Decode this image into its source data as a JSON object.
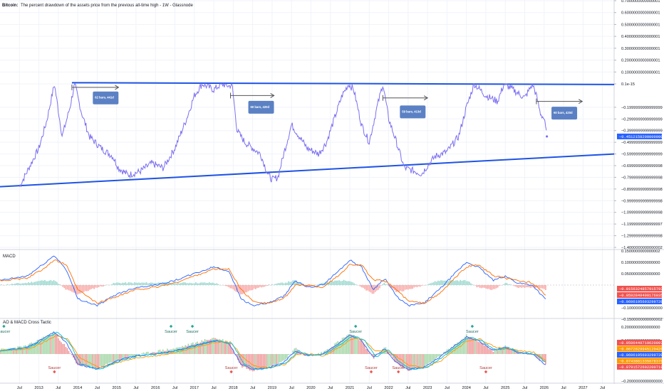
{
  "header": {
    "title_bold": "Bitcoin:",
    "title_rest": "The percent drawdown of the assets price from the previous all-time high - 1W - Glassnode"
  },
  "panes": {
    "macd_label": "MACD",
    "ao_label": "AO & MACD Cross Tactic"
  },
  "colors": {
    "price_line": "#7b6ff0",
    "trend_line": "#1e53e5",
    "note_box": "#5b81c4",
    "macd_line": "#2962ff",
    "signal_line": "#ff6d00",
    "hist_up": "#26a69a",
    "hist_down": "#ef5350",
    "saucer_green": "#26a69a",
    "saucer_red": "#ef5350",
    "tag_blue": "#2962ff",
    "tag_red": "#ef5350",
    "tag_orange": "#ff9800"
  },
  "chart_data": [
    {
      "type": "line",
      "title": "Bitcoin: The percent drawdown of the assets price from the previous all-time high - 1W - Glassnode",
      "series": [
        {
          "x": [
            2012.5,
            2013.0,
            2013.2,
            2013.4,
            2013.6,
            2013.8,
            2013.92,
            2014.1,
            2014.3,
            2014.6,
            2014.9,
            2015.05,
            2015.3,
            2015.6,
            2015.9,
            2016.2,
            2016.5,
            2016.8,
            2017.0,
            2017.2,
            2017.5,
            2017.7,
            2017.9,
            2017.97,
            2018.1,
            2018.3,
            2018.5,
            2018.7,
            2018.9,
            2019.0,
            2019.15,
            2019.3,
            2019.5,
            2019.7,
            2019.9,
            2020.2,
            2020.4,
            2020.6,
            2020.8,
            2020.97,
            2021.1,
            2021.3,
            2021.5,
            2021.7,
            2021.85,
            2022.0,
            2022.2,
            2022.4,
            2022.6,
            2022.85,
            2023.0,
            2023.2,
            2023.5,
            2023.8,
            2024.0,
            2024.2,
            2024.5,
            2024.8,
            2024.97,
            2025.2,
            2025.5,
            2025.7,
            2025.8,
            2025.9,
            2026.0,
            2026.07
          ],
          "values": [
            -0.88,
            -0.55,
            -0.32,
            0.0,
            -0.45,
            -0.2,
            0.0,
            -0.25,
            -0.45,
            -0.55,
            -0.62,
            -0.72,
            -0.78,
            -0.75,
            -0.68,
            -0.72,
            -0.55,
            -0.3,
            -0.1,
            0.0,
            -0.05,
            0.0,
            -0.02,
            0.0,
            -0.4,
            -0.5,
            -0.55,
            -0.6,
            -0.78,
            -0.82,
            -0.8,
            -0.6,
            -0.35,
            -0.45,
            -0.55,
            -0.6,
            -0.5,
            -0.3,
            -0.1,
            0.0,
            -0.05,
            -0.35,
            -0.5,
            -0.2,
            0.0,
            -0.3,
            -0.5,
            -0.72,
            -0.74,
            -0.77,
            -0.7,
            -0.62,
            -0.58,
            -0.45,
            -0.2,
            0.0,
            -0.1,
            -0.15,
            0.0,
            -0.05,
            -0.12,
            0.0,
            -0.1,
            -0.25,
            -0.3,
            -0.45
          ]
        }
      ],
      "xlim": [
        2012.0,
        2027.8
      ],
      "ylim": [
        -1.4,
        0.7
      ],
      "y_tick_labels": [
        "0.7000000000000001",
        "0.6000000000000001",
        "0.5000000000000001",
        "0.4000000000000001",
        "0.3000000000000001",
        "0.2000000000000001",
        "0.1000000000000001",
        "0.1e-15",
        "−0.1999999999999999",
        "−0.2999999999999999",
        "−0.3999999999999999",
        "−0.4999999999999999",
        "−0.5999999999999999",
        "−0.6999999999999998",
        "−0.7999999999999998",
        "−0.8999999999999998",
        "−0.9999999999999998",
        "−1.0999999999999998",
        "−1.1999999999999997",
        "−1.2999999999999998",
        "−1.4000000000000002"
      ],
      "y_tick_values": [
        0.7,
        0.6,
        0.5,
        0.4,
        0.3,
        0.2,
        0.1,
        0.0,
        -0.2,
        -0.3,
        -0.4,
        -0.5,
        -0.6,
        -0.7,
        -0.8,
        -0.9,
        -1.0,
        -1.1,
        -1.2,
        -1.3,
        -1.4
      ],
      "last_value_label": "−0.4512158200000000",
      "trend_lines": [
        {
          "x": [
            2013.85,
            2027.8
          ],
          "y": [
            0.01,
            -0.005
          ]
        },
        {
          "x": [
            2012.0,
            2027.8
          ],
          "y": [
            -0.88,
            -0.6
          ]
        }
      ],
      "projections": [
        {
          "x0": 2013.85,
          "x1": 2015.05,
          "y": -0.03,
          "label": "62 bars, 441d",
          "label_x": 2014.7,
          "label_y": -0.12
        },
        {
          "x0": 2017.93,
          "x1": 2019.05,
          "y": -0.1,
          "label": "60 bars, 420d",
          "label_x": 2018.7,
          "label_y": -0.2
        },
        {
          "x0": 2021.85,
          "x1": 2023.0,
          "y": -0.12,
          "label": "59 bars, 413d",
          "label_x": 2022.6,
          "label_y": -0.24
        },
        {
          "x0": 2025.8,
          "x1": 2026.98,
          "y": -0.15,
          "label": "60 bars, 420d",
          "label_x": 2026.5,
          "label_y": -0.25
        }
      ]
    },
    {
      "type": "line",
      "title": "MACD",
      "series": [
        {
          "name": "MACD",
          "x": [
            2012.0,
            2012.7,
            2013.1,
            2013.4,
            2013.7,
            2014.0,
            2014.5,
            2015.0,
            2015.5,
            2016.0,
            2016.5,
            2017.0,
            2017.5,
            2017.9,
            2018.2,
            2018.5,
            2018.9,
            2019.3,
            2019.6,
            2019.9,
            2020.3,
            2020.7,
            2021.0,
            2021.3,
            2021.6,
            2021.9,
            2022.2,
            2022.5,
            2022.9,
            2023.3,
            2023.7,
            2024.0,
            2024.3,
            2024.7,
            2025.0,
            2025.3,
            2025.7,
            2026.07
          ],
          "values": [
            0.02,
            0.04,
            0.09,
            0.13,
            0.07,
            -0.06,
            -0.09,
            -0.04,
            -0.01,
            0.0,
            0.02,
            0.05,
            0.08,
            0.06,
            -0.06,
            -0.09,
            -0.08,
            -0.05,
            0.02,
            -0.01,
            0.0,
            0.06,
            0.11,
            0.08,
            -0.02,
            0.03,
            -0.05,
            -0.09,
            -0.08,
            -0.02,
            0.05,
            0.1,
            0.08,
            0.02,
            0.04,
            0.01,
            0.0,
            -0.07
          ]
        },
        {
          "name": "Signal",
          "x": [
            2012.0,
            2012.7,
            2013.1,
            2013.4,
            2013.7,
            2014.0,
            2014.5,
            2015.0,
            2015.5,
            2016.0,
            2016.5,
            2017.0,
            2017.5,
            2017.9,
            2018.2,
            2018.5,
            2018.9,
            2019.3,
            2019.6,
            2019.9,
            2020.3,
            2020.7,
            2021.0,
            2021.3,
            2021.6,
            2021.9,
            2022.2,
            2022.5,
            2022.9,
            2023.3,
            2023.7,
            2024.0,
            2024.3,
            2024.7,
            2025.0,
            2025.3,
            2025.7,
            2026.07
          ],
          "values": [
            0.02,
            0.03,
            0.07,
            0.11,
            0.09,
            -0.02,
            -0.08,
            -0.05,
            -0.02,
            -0.01,
            0.01,
            0.04,
            0.07,
            0.07,
            -0.02,
            -0.07,
            -0.08,
            -0.06,
            0.0,
            0.0,
            -0.01,
            0.04,
            0.09,
            0.09,
            0.02,
            0.02,
            -0.02,
            -0.07,
            -0.08,
            -0.04,
            0.03,
            0.08,
            0.09,
            0.04,
            0.03,
            0.02,
            0.01,
            -0.05
          ]
        }
      ],
      "ylim": [
        -0.18,
        0.17
      ],
      "y_tick_labels": [
        "0.1500000000000002",
        "0.1000000000000000",
        "0.0500000000000000",
        "−0.1000000000000000",
        "−0.1500000000000002"
      ],
      "y_tick_values": [
        0.15,
        0.1,
        0.05,
        -0.1,
        -0.15
      ],
      "value_tags": [
        "−0.0156324857915793",
        "−0.0592849490176035",
        "−0.0696195693299720"
      ]
    },
    {
      "type": "bar",
      "title": "AO & MACD Cross Tactic",
      "series": [
        {
          "name": "AO",
          "x": [
            2012.0,
            2012.7,
            2013.1,
            2013.4,
            2013.7,
            2014.0,
            2014.5,
            2015.0,
            2015.5,
            2016.0,
            2016.5,
            2017.0,
            2017.5,
            2017.9,
            2018.2,
            2018.5,
            2018.9,
            2019.3,
            2019.6,
            2019.9,
            2020.3,
            2020.7,
            2021.0,
            2021.3,
            2021.6,
            2021.9,
            2022.2,
            2022.5,
            2022.9,
            2023.3,
            2023.7,
            2024.0,
            2024.3,
            2024.7,
            2025.0,
            2025.3,
            2025.7,
            2026.07
          ],
          "values": [
            0.03,
            0.06,
            0.12,
            0.16,
            0.05,
            -0.08,
            -0.11,
            -0.05,
            -0.01,
            0.02,
            0.04,
            0.08,
            0.12,
            0.09,
            -0.09,
            -0.12,
            -0.1,
            -0.05,
            0.04,
            -0.02,
            0.01,
            0.09,
            0.15,
            0.1,
            -0.03,
            0.05,
            -0.07,
            -0.12,
            -0.1,
            -0.02,
            0.07,
            0.14,
            0.1,
            0.02,
            0.06,
            0.02,
            0.0,
            -0.08
          ]
        }
      ],
      "signals": [
        {
          "label": "Saucer",
          "x": 2012.1,
          "dir": "up"
        },
        {
          "label": "Saucer",
          "x": 2016.4,
          "dir": "up"
        },
        {
          "label": "Saucer",
          "x": 2016.95,
          "dir": "up"
        },
        {
          "label": "Saucer",
          "x": 2021.15,
          "dir": "up"
        },
        {
          "label": "Saucer",
          "x": 2024.15,
          "dir": "up"
        },
        {
          "label": "Saucer",
          "x": 2013.4,
          "dir": "down"
        },
        {
          "label": "Saucer",
          "x": 2017.95,
          "dir": "down"
        },
        {
          "label": "Saucer",
          "x": 2021.55,
          "dir": "down"
        },
        {
          "label": "Saucer",
          "x": 2022.25,
          "dir": "down"
        },
        {
          "label": "Saucer",
          "x": 2024.5,
          "dir": "down"
        }
      ],
      "ylim": [
        -0.2,
        0.22
      ],
      "y_tick_labels": [
        "0.2000000000000000",
        "0.1000000000000000",
        "−0.2000000000000000"
      ],
      "y_tick_values": [
        0.2,
        0.1,
        -0.2
      ],
      "value_tags": [
        "−0.0596449719620097",
        "−0.0672829945120420",
        "−0.0696195693299720",
        "−0.0743881335878376",
        "−0.0791572602200719"
      ]
    }
  ],
  "time_axis": {
    "labels": [
      "Jul",
      "2013",
      "Jul",
      "2014",
      "Jul",
      "2015",
      "Jul",
      "2016",
      "Jul",
      "2017",
      "Jul",
      "2018",
      "Jul",
      "2019",
      "Jul",
      "2020",
      "Jul",
      "2021",
      "Jul",
      "2022",
      "Jul",
      "2023",
      "Jul",
      "2024",
      "Jul",
      "2025",
      "Jul",
      "2026",
      "Jul",
      "2027",
      "Jul"
    ],
    "values": [
      2012.5,
      2013.0,
      2013.5,
      2014.0,
      2014.5,
      2015.0,
      2015.5,
      2016.0,
      2016.5,
      2017.0,
      2017.5,
      2018.0,
      2018.5,
      2019.0,
      2019.5,
      2020.0,
      2020.5,
      2021.0,
      2021.5,
      2022.0,
      2022.5,
      2023.0,
      2023.5,
      2024.0,
      2024.5,
      2025.0,
      2025.5,
      2026.0,
      2026.5,
      2027.0,
      2027.5
    ]
  }
}
